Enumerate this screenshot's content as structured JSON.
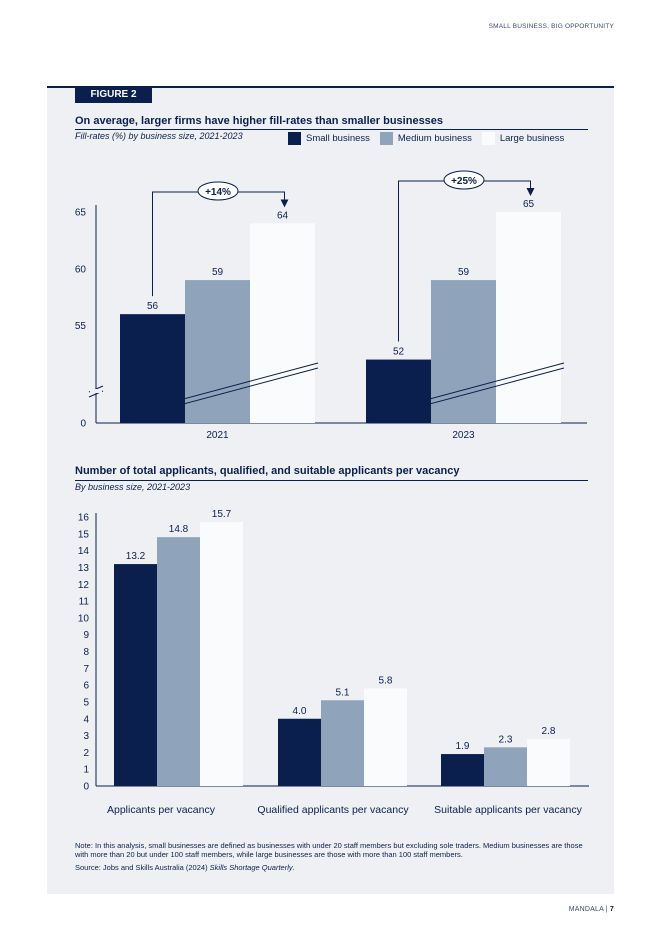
{
  "header": {
    "running_title": "SMALL BUSINESS, BIG OPPORTUNITY"
  },
  "figure": {
    "label": "FIGURE 2"
  },
  "colors": {
    "small": "#0b1f4e",
    "medium": "#8fa3ba",
    "large": "#fafbfc",
    "panel": "#eef0f3"
  },
  "legend": {
    "small": "Small business",
    "medium": "Medium business",
    "large": "Large business"
  },
  "chart_data": [
    {
      "type": "bar",
      "title": "On average, larger firms have higher fill-rates than smaller businesses",
      "subtitle": "Fill-rates (%) by business size, 2021-2023",
      "categories": [
        "2021",
        "2023"
      ],
      "series": [
        {
          "name": "Small business",
          "values": [
            56,
            52
          ]
        },
        {
          "name": "Medium business",
          "values": [
            59,
            59
          ]
        },
        {
          "name": "Large business",
          "values": [
            64,
            65
          ]
        }
      ],
      "y_ticks": [
        0,
        55,
        60,
        65
      ],
      "ylim": [
        50,
        65
      ],
      "axis_break": true,
      "annotations": [
        "+14%",
        "+25%"
      ],
      "xlabel": "",
      "ylabel": ""
    },
    {
      "type": "bar",
      "title": "Number of total applicants, qualified, and suitable applicants per vacancy",
      "subtitle": "By business size, 2021-2023",
      "categories": [
        "Applicants per vacancy",
        "Qualified applicants per vacancy",
        "Suitable applicants per vacancy"
      ],
      "series": [
        {
          "name": "Small business",
          "values": [
            13.2,
            4.0,
            1.9
          ],
          "labels": [
            "13.2",
            "4.0",
            "1.9"
          ]
        },
        {
          "name": "Medium business",
          "values": [
            14.8,
            5.1,
            2.3
          ],
          "labels": [
            "14.8",
            "5.1",
            "2.3"
          ]
        },
        {
          "name": "Large business",
          "values": [
            15.7,
            5.8,
            2.8
          ],
          "labels": [
            "15.7",
            "5.8",
            "2.8"
          ]
        }
      ],
      "y_ticks": [
        0,
        1,
        2,
        3,
        4,
        5,
        6,
        7,
        8,
        9,
        10,
        11,
        12,
        13,
        14,
        15,
        16
      ],
      "ylim": [
        0,
        16
      ],
      "xlabel": "",
      "ylabel": ""
    }
  ],
  "notes": {
    "note": "Note: In this analysis, small businesses are defined as businesses with under 20 staff members but excluding sole traders. Medium businesses are those with more than 20 but under 100 staff members, while large businesses are those with more than 100 staff members.",
    "source_prefix": "Source: Jobs and Skills Australia (2024) ",
    "source_title": "Skills Shortage Quarterly",
    "source_suffix": "."
  },
  "footer": {
    "brand": "MANDALA",
    "separator": "|",
    "page": "7"
  }
}
